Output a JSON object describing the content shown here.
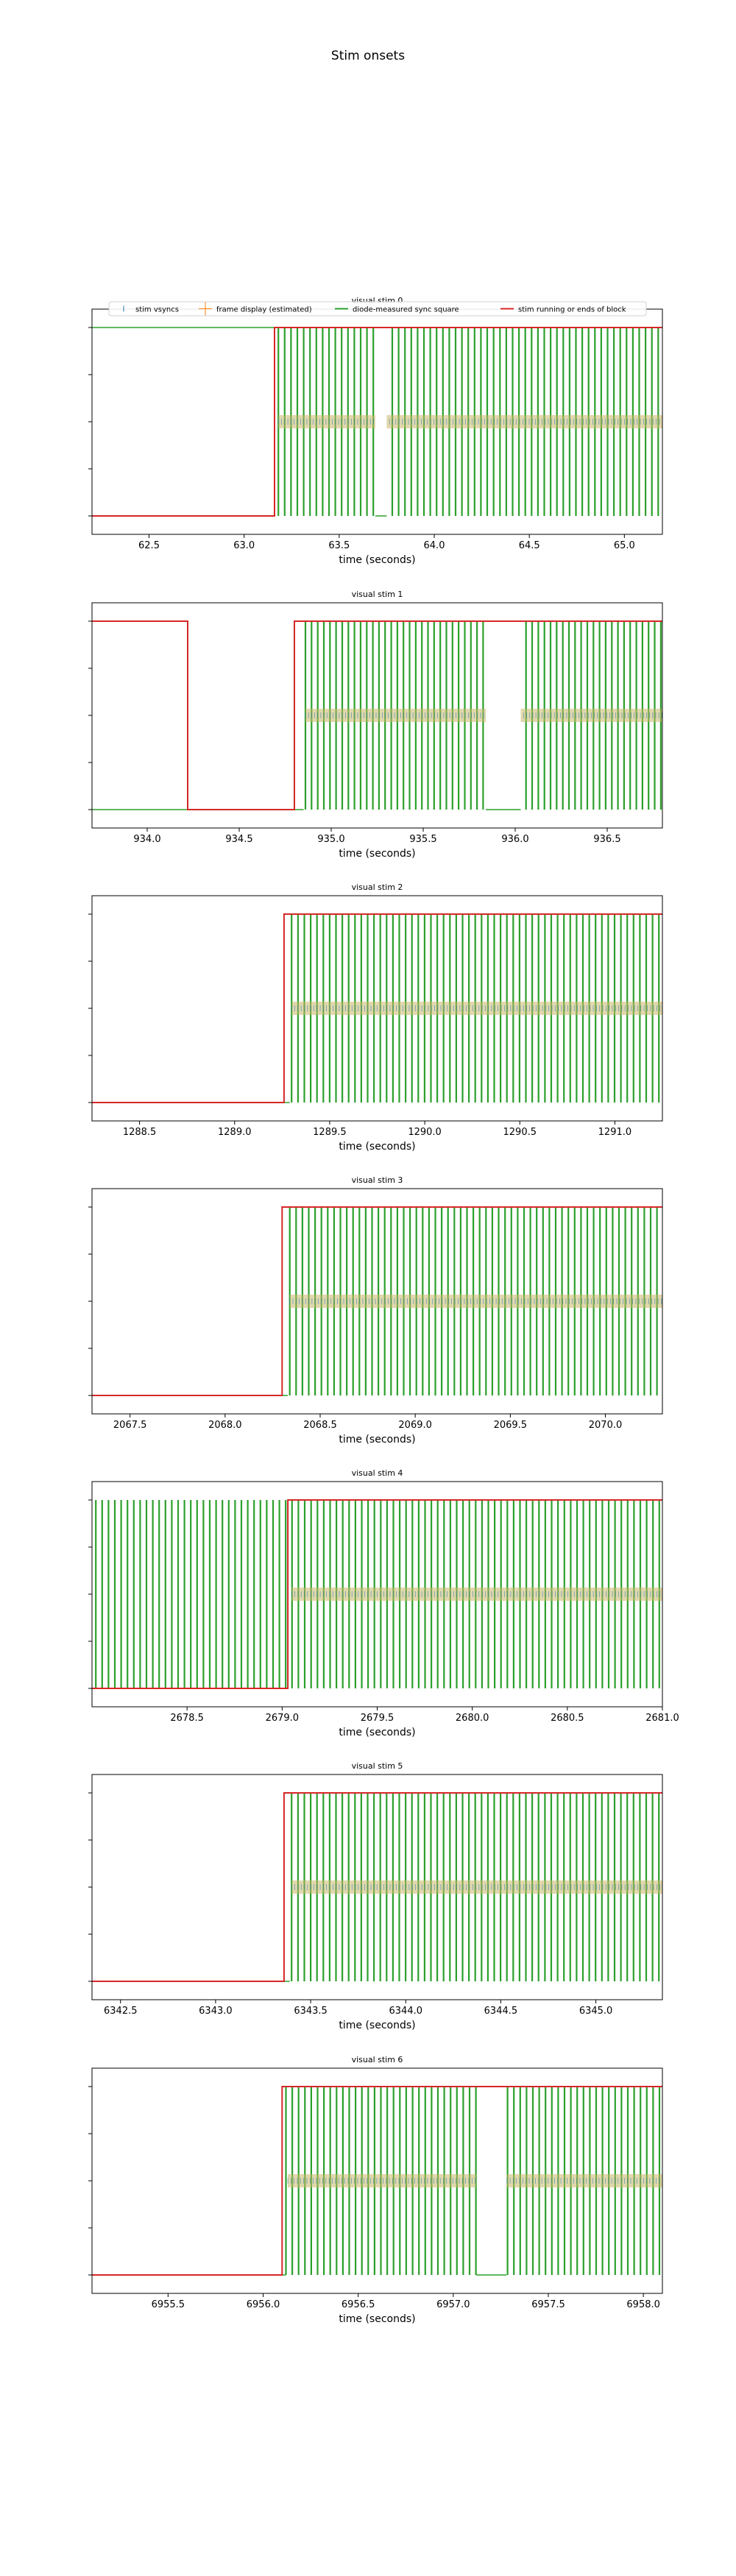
{
  "figure": {
    "title": "Stim onsets"
  },
  "colors": {
    "vsync": "#1f77b4",
    "frame": "#ff7f0e",
    "diode": "#2ca02c",
    "block": "#d62728",
    "axis": "#000000"
  },
  "legend": {
    "placement": "upper-center",
    "entries": [
      "stim vsyncs",
      "frame display (estimated)",
      "diode-measured sync square",
      "stim running or ends of block"
    ]
  },
  "chart_data": [
    {
      "type": "line",
      "title": "visual stim 0",
      "xlabel": "time (seconds)",
      "xlim": [
        62.2,
        65.2
      ],
      "xticks": [
        62.5,
        63.0,
        63.5,
        64.0,
        64.5,
        65.0
      ],
      "xtick_labels": [
        "62.5",
        "63.0",
        "63.5",
        "64.0",
        "64.5",
        "65.0"
      ],
      "series": [
        {
          "name": "stim running or ends of block",
          "x": [
            62.2,
            63.16,
            63.16,
            65.2
          ],
          "y": [
            0,
            0,
            1,
            1
          ]
        },
        {
          "name": "diode-measured sync square",
          "x": [
            62.2,
            63.17
          ],
          "y": [
            1,
            1
          ],
          "pulse_start": 63.18,
          "pulse_period": 0.0333,
          "gaps": [
            [
              63.69,
              63.75
            ]
          ]
        },
        {
          "name": "stim vsyncs",
          "start": 63.18,
          "period": 0.0167,
          "level": 0.5,
          "gaps": [
            [
              63.69,
              63.75
            ]
          ]
        }
      ]
    },
    {
      "type": "line",
      "title": "visual stim 1",
      "xlabel": "time (seconds)",
      "xlim": [
        933.7,
        936.8
      ],
      "xticks": [
        934.0,
        934.5,
        935.0,
        935.5,
        936.0,
        936.5
      ],
      "xtick_labels": [
        "934.0",
        "934.5",
        "935.0",
        "935.5",
        "936.0",
        "936.5"
      ],
      "series": [
        {
          "name": "stim running or ends of block",
          "x": [
            933.7,
            934.22,
            934.22,
            934.8,
            934.8,
            936.8
          ],
          "y": [
            1,
            1,
            0,
            0,
            1,
            1
          ]
        },
        {
          "name": "diode-measured sync square",
          "x": [
            933.7,
            934.85
          ],
          "y": [
            0,
            0
          ],
          "pulse_start": 934.86,
          "pulse_period": 0.0333,
          "gaps": [
            [
              935.84,
              936.03
            ]
          ]
        },
        {
          "name": "stim vsyncs",
          "start": 934.86,
          "period": 0.0167,
          "level": 0.5,
          "gaps": [
            [
              935.84,
              936.03
            ]
          ]
        }
      ]
    },
    {
      "type": "line",
      "title": "visual stim 2",
      "xlabel": "time (seconds)",
      "xlim": [
        1288.25,
        1291.25
      ],
      "xticks": [
        1288.5,
        1289.0,
        1289.5,
        1290.0,
        1290.5,
        1291.0
      ],
      "xtick_labels": [
        "1288.5",
        "1289.0",
        "1289.5",
        "1290.0",
        "1290.5",
        "1291.0"
      ],
      "series": [
        {
          "name": "stim running or ends of block",
          "x": [
            1288.25,
            1289.26,
            1289.26,
            1291.25
          ],
          "y": [
            0,
            0,
            1,
            1
          ]
        },
        {
          "name": "diode-measured sync square",
          "x": [
            1288.25,
            1289.29
          ],
          "y": [
            0,
            0
          ],
          "pulse_start": 1289.3,
          "pulse_period": 0.0333,
          "gaps": []
        },
        {
          "name": "stim vsyncs",
          "start": 1289.3,
          "period": 0.0167,
          "level": 0.5,
          "gaps": []
        }
      ]
    },
    {
      "type": "line",
      "title": "visual stim 3",
      "xlabel": "time (seconds)",
      "xlim": [
        2067.3,
        2070.3
      ],
      "xticks": [
        2067.5,
        2068.0,
        2068.5,
        2069.0,
        2069.5,
        2070.0
      ],
      "xtick_labels": [
        "2067.5",
        "2068.0",
        "2068.5",
        "2069.0",
        "2069.5",
        "2070.0"
      ],
      "series": [
        {
          "name": "stim running or ends of block",
          "x": [
            2067.3,
            2068.3,
            2068.3,
            2070.3
          ],
          "y": [
            0,
            0,
            1,
            1
          ]
        },
        {
          "name": "diode-measured sync square",
          "x": [
            2067.3,
            2068.33
          ],
          "y": [
            0,
            0
          ],
          "pulse_start": 2068.34,
          "pulse_period": 0.0333,
          "gaps": []
        },
        {
          "name": "stim vsyncs",
          "start": 2068.34,
          "period": 0.0167,
          "level": 0.5,
          "gaps": []
        }
      ]
    },
    {
      "type": "line",
      "title": "visual stim 4",
      "xlabel": "time (seconds)",
      "xlim": [
        2678.0,
        2681.0
      ],
      "xticks": [
        2678.5,
        2679.0,
        2679.5,
        2680.0,
        2680.5,
        2681.0
      ],
      "xtick_labels": [
        "2678.5",
        "2679.0",
        "2679.5",
        "2680.0",
        "2680.5",
        "2681.0"
      ],
      "series": [
        {
          "name": "stim running or ends of block",
          "x": [
            2678.0,
            2679.03,
            2679.03,
            2681.0
          ],
          "y": [
            0,
            0,
            1,
            1
          ]
        },
        {
          "name": "diode-measured sync square",
          "x": [],
          "y": [],
          "pulse_start": 2678.02,
          "pulse_period": 0.0333,
          "gaps": []
        },
        {
          "name": "stim vsyncs",
          "start": 2679.05,
          "period": 0.0167,
          "level": 0.5,
          "gaps": []
        }
      ]
    },
    {
      "type": "line",
      "title": "visual stim 5",
      "xlabel": "time (seconds)",
      "xlim": [
        6342.35,
        6345.35
      ],
      "xticks": [
        6342.5,
        6343.0,
        6343.5,
        6344.0,
        6344.5,
        6345.0
      ],
      "xtick_labels": [
        "6342.5",
        "6343.0",
        "6343.5",
        "6344.0",
        "6344.5",
        "6345.0"
      ],
      "series": [
        {
          "name": "stim running or ends of block",
          "x": [
            6342.35,
            6343.36,
            6343.36,
            6345.35
          ],
          "y": [
            0,
            0,
            1,
            1
          ]
        },
        {
          "name": "diode-measured sync square",
          "x": [
            6342.35,
            6343.39
          ],
          "y": [
            0,
            0
          ],
          "pulse_start": 6343.4,
          "pulse_period": 0.0333,
          "gaps": []
        },
        {
          "name": "stim vsyncs",
          "start": 6343.4,
          "period": 0.0167,
          "level": 0.5,
          "gaps": []
        }
      ]
    },
    {
      "type": "line",
      "title": "visual stim 6",
      "xlabel": "time (seconds)",
      "xlim": [
        6955.1,
        6958.1
      ],
      "xticks": [
        6955.5,
        6956.0,
        6956.5,
        6957.0,
        6957.5,
        6958.0
      ],
      "xtick_labels": [
        "6955.5",
        "6956.0",
        "6956.5",
        "6957.0",
        "6957.5",
        "6958.0"
      ],
      "series": [
        {
          "name": "stim running or ends of block",
          "x": [
            6955.1,
            6956.1,
            6956.1,
            6958.1
          ],
          "y": [
            0,
            0,
            1,
            1
          ]
        },
        {
          "name": "diode-measured sync square",
          "x": [
            6955.1,
            6956.12
          ],
          "y": [
            0,
            0
          ],
          "pulse_start": 6956.12,
          "pulse_period": 0.0333,
          "gaps": [
            [
              6957.12,
              6957.28
            ]
          ]
        },
        {
          "name": "stim vsyncs",
          "start": 6956.13,
          "period": 0.0167,
          "level": 0.5,
          "gaps": [
            [
              6957.12,
              6957.28
            ]
          ]
        }
      ]
    }
  ]
}
